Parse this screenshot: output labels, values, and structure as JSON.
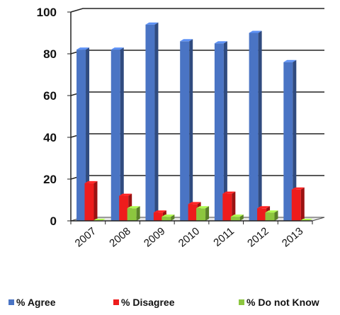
{
  "chart_data": {
    "type": "bar",
    "categories": [
      "2007",
      "2008",
      "2009",
      "2010",
      "2011",
      "2012",
      "2013"
    ],
    "series": [
      {
        "name": "% Agree",
        "color": "#4a74c4",
        "values": [
          82,
          82,
          94,
          86,
          85,
          90,
          76
        ]
      },
      {
        "name": "% Disagree",
        "color": "#ee1c1c",
        "values": [
          18,
          12,
          4,
          8,
          13,
          6,
          15
        ]
      },
      {
        "name": "% Do not Know",
        "color": "#8cc63f",
        "values": [
          0,
          6,
          2,
          6,
          2,
          4,
          0
        ]
      }
    ],
    "yticks": [
      "0",
      "20",
      "40",
      "60",
      "80",
      "100"
    ],
    "ylim": [
      0,
      100
    ],
    "grid": true,
    "legend_position": "bottom"
  }
}
